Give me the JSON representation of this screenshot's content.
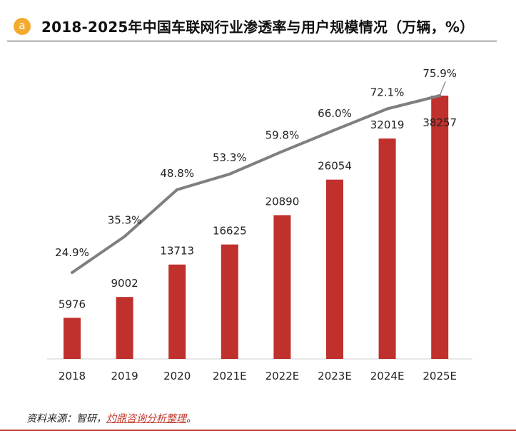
{
  "header": {
    "badge_letter": "a",
    "title": "2018-2025年中国车联网行业渗透率与用户规模情况（万辆，%）"
  },
  "colors": {
    "bar": "#c0302c",
    "line": "#7f7f7f",
    "badge": "#f4ab2d",
    "source_link": "#c0392b"
  },
  "chart_data": {
    "type": "bar",
    "categories": [
      "2018",
      "2019",
      "2020",
      "2021E",
      "2022E",
      "2023E",
      "2024E",
      "2025E"
    ],
    "series": [
      {
        "type": "bar",
        "values": [
          5976,
          9002,
          13713,
          16625,
          20890,
          26054,
          32019,
          38257
        ]
      },
      {
        "type": "line",
        "values": [
          24.9,
          35.3,
          48.8,
          53.3,
          59.8,
          66.0,
          72.1,
          75.9
        ],
        "labels": [
          "24.9%",
          "35.3%",
          "48.8%",
          "53.3%",
          "59.8%",
          "66.0%",
          "72.1%",
          "75.9%"
        ]
      }
    ],
    "grid": false,
    "legend": "none"
  },
  "footer": {
    "source_prefix": "资料来源：智研，",
    "source_link": "灼鼎咨询分析整理",
    "source_suffix": "。"
  }
}
